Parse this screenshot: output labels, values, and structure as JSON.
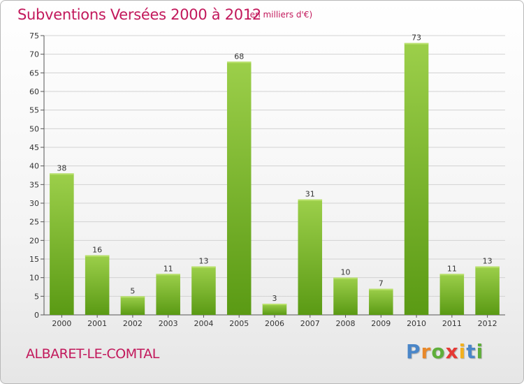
{
  "header": {
    "title": "Subventions Versées 2000 à 2012",
    "subtitle": "(en milliers d'€)"
  },
  "footer": {
    "place": "ALBARET-LE-COMTAL",
    "logo": [
      "P",
      "r",
      "o",
      "x",
      "i",
      "t",
      "i"
    ]
  },
  "colors": {
    "title": "#c2185b",
    "bar_light": "#9ccf4a",
    "bar_dark": "#5a9a14",
    "logo": [
      "#4a86c8",
      "#e8882a",
      "#5fae3a",
      "#e53935",
      "#f2b01e",
      "#4a86c8",
      "#5fae3a"
    ]
  },
  "chart_data": {
    "type": "bar",
    "title": "Subventions Versées 2000 à 2012",
    "subtitle": "(en milliers d'€)",
    "categories": [
      "2000",
      "2001",
      "2002",
      "2003",
      "2004",
      "2005",
      "2006",
      "2007",
      "2008",
      "2009",
      "2010",
      "2011",
      "2012"
    ],
    "values": [
      38,
      16,
      5,
      11,
      13,
      68,
      3,
      31,
      10,
      7,
      73,
      11,
      13
    ],
    "ylim": [
      0,
      75
    ],
    "yticks": [
      0,
      5,
      10,
      15,
      20,
      25,
      30,
      35,
      40,
      45,
      50,
      55,
      60,
      65,
      70,
      75
    ],
    "grid": true,
    "xlabel": "",
    "ylabel": ""
  }
}
